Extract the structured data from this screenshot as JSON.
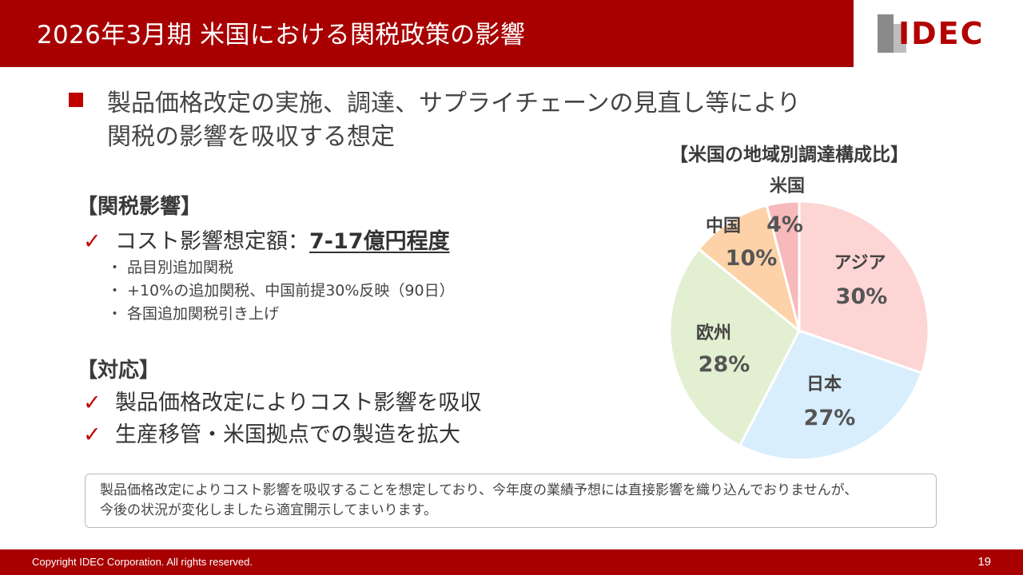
{
  "header": {
    "title": "2026年3月期 米国における関税政策の影響",
    "logo_text": "IDEC"
  },
  "lead": {
    "line1": "製品価格改定の実施、調達、サプライチェーンの見直し等により",
    "line2": "関税の影響を吸収する想定"
  },
  "tariff": {
    "heading": "【関税影響】",
    "check_mark": "✓",
    "cost_label": "コスト影響想定額：",
    "cost_value": "7-17億円程度",
    "sub_items": [
      "・ 品目別追加関税",
      "・ +10%の追加関税、中国前提30%反映（90日）",
      "・ 各国追加関税引き上げ"
    ]
  },
  "response": {
    "heading": "【対応】",
    "items": [
      "製品価格改定によりコスト影響を吸収",
      "生産移管・米国拠点での製造を拡大"
    ]
  },
  "note": {
    "line1": "製品価格改定によりコスト影響を吸収することを想定しており、今年度の業績予想には直接影響を織り込んでおりませんが、",
    "line2": "今後の状況が変化しましたら適宜開示してまいります。"
  },
  "footer": {
    "copyright": "Copyright IDEC Corporation. All rights reserved.",
    "page_number": "19"
  },
  "colors": {
    "brand_red": "#a80000",
    "check_red": "#c00000"
  },
  "chart_data": {
    "type": "pie",
    "title": "【米国の地域別調達構成比】",
    "start_angle_deg": 0,
    "direction": "clockwise",
    "slices": [
      {
        "label": "アジア",
        "value": 30,
        "display": "30%",
        "color": "#fdd5d5"
      },
      {
        "label": "日本",
        "value": 27,
        "display": "27%",
        "color": "#d9eefc"
      },
      {
        "label": "欧州",
        "value": 28,
        "display": "28%",
        "color": "#e2efd1"
      },
      {
        "label": "中国",
        "value": 10,
        "display": "10%",
        "color": "#fdd2a8"
      },
      {
        "label": "米国",
        "value": 4,
        "display": "4%",
        "color": "#f8b9bb"
      }
    ]
  }
}
